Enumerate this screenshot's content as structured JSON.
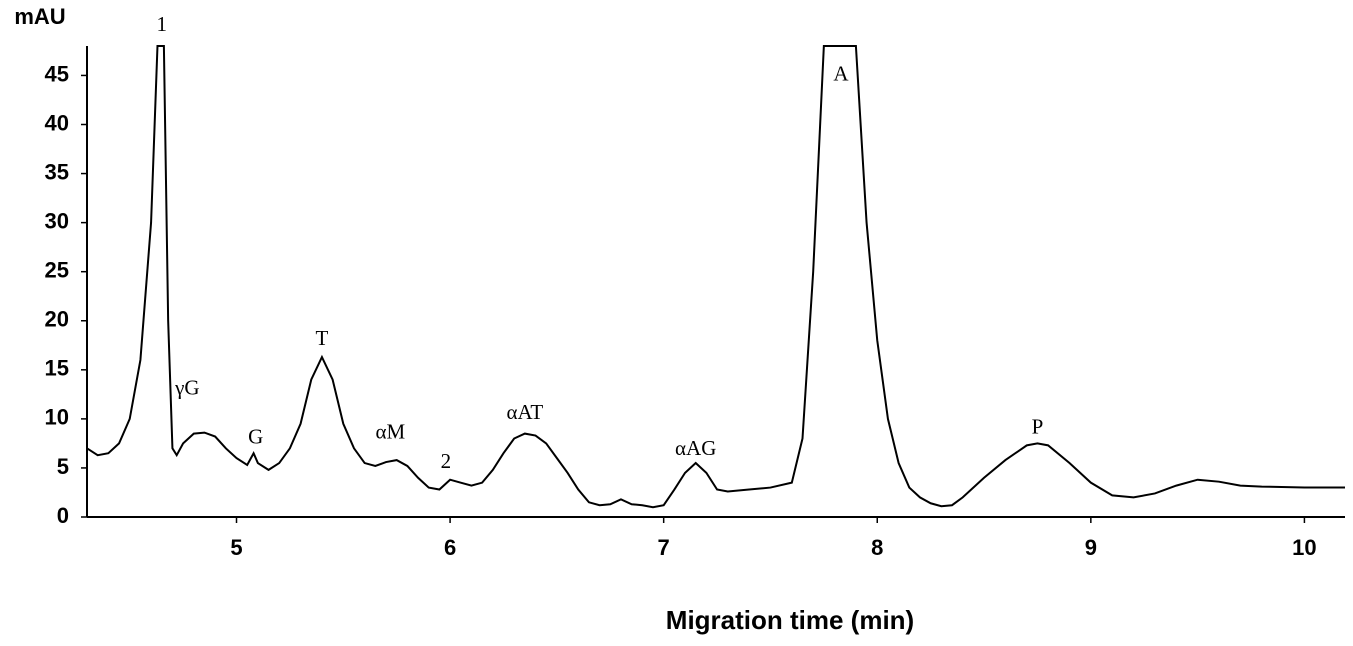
{
  "chart_data": {
    "type": "line",
    "y_label": "mAU",
    "x_label": "Migration time (min)",
    "color": "#000000",
    "xlim": [
      4.3,
      10.19
    ],
    "xticks": [
      5,
      6,
      7,
      8,
      9,
      10
    ],
    "ylim": [
      0,
      48
    ],
    "yticks": [
      0,
      5,
      10,
      15,
      20,
      25,
      30,
      35,
      40,
      45
    ],
    "x": [
      4.3,
      4.35,
      4.4,
      4.45,
      4.5,
      4.55,
      4.6,
      4.63,
      4.66,
      4.68,
      4.7,
      4.72,
      4.75,
      4.8,
      4.85,
      4.9,
      4.95,
      5.0,
      5.05,
      5.08,
      5.1,
      5.15,
      5.2,
      5.25,
      5.3,
      5.35,
      5.4,
      5.45,
      5.5,
      5.55,
      5.6,
      5.65,
      5.7,
      5.75,
      5.8,
      5.85,
      5.9,
      5.95,
      6.0,
      6.05,
      6.1,
      6.15,
      6.2,
      6.25,
      6.3,
      6.35,
      6.4,
      6.45,
      6.5,
      6.55,
      6.6,
      6.65,
      6.7,
      6.75,
      6.8,
      6.85,
      6.9,
      6.95,
      7.0,
      7.05,
      7.1,
      7.15,
      7.2,
      7.25,
      7.3,
      7.4,
      7.5,
      7.6,
      7.65,
      7.7,
      7.75,
      7.9,
      7.95,
      8.0,
      8.05,
      8.1,
      8.15,
      8.2,
      8.25,
      8.3,
      8.35,
      8.4,
      8.5,
      8.6,
      8.7,
      8.75,
      8.8,
      8.9,
      9.0,
      9.1,
      9.2,
      9.3,
      9.4,
      9.5,
      9.6,
      9.7,
      9.8,
      10.0,
      10.19
    ],
    "values": [
      7,
      6.3,
      6.5,
      7.5,
      10,
      16,
      30,
      48,
      48,
      20,
      7,
      6.3,
      7.5,
      8.5,
      8.6,
      8.2,
      7,
      6,
      5.3,
      6.5,
      5.5,
      4.8,
      5.5,
      7,
      9.5,
      14,
      16.3,
      14,
      9.5,
      7,
      5.5,
      5.2,
      5.6,
      5.8,
      5.2,
      4,
      3,
      2.8,
      3.8,
      3.5,
      3.2,
      3.5,
      4.8,
      6.5,
      8,
      8.5,
      8.3,
      7.5,
      6,
      4.5,
      2.8,
      1.5,
      1.2,
      1.3,
      1.8,
      1.3,
      1.2,
      1,
      1.2,
      2.8,
      4.5,
      5.5,
      4.5,
      2.8,
      2.6,
      2.8,
      3,
      3.5,
      8,
      25,
      48,
      48,
      30,
      18,
      10,
      5.5,
      3,
      2,
      1.4,
      1.1,
      1.2,
      2,
      4,
      5.8,
      7.3,
      7.5,
      7.3,
      5.5,
      3.5,
      2.2,
      2,
      2.4,
      3.2,
      3.8,
      3.6,
      3.2,
      3.1,
      3,
      3
    ],
    "annotations": [
      {
        "text": "1",
        "x": 4.65,
        "y": 50
      },
      {
        "text": "γG",
        "x": 4.77,
        "y": 13
      },
      {
        "text": "G",
        "x": 5.09,
        "y": 8
      },
      {
        "text": "T",
        "x": 5.4,
        "y": 18
      },
      {
        "text": "αM",
        "x": 5.72,
        "y": 8.5
      },
      {
        "text": "2",
        "x": 5.98,
        "y": 5.5
      },
      {
        "text": "αAT",
        "x": 6.35,
        "y": 10.5
      },
      {
        "text": "αAG",
        "x": 7.15,
        "y": 6.8
      },
      {
        "text": "A",
        "x": 7.83,
        "y": 45
      },
      {
        "text": "P",
        "x": 8.75,
        "y": 9
      }
    ]
  }
}
